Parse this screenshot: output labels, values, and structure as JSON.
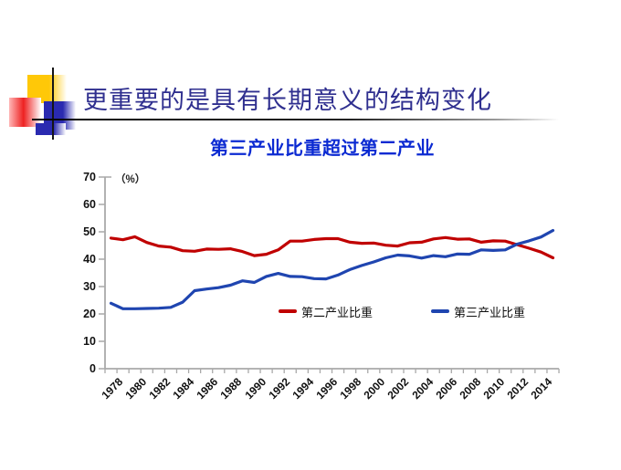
{
  "slide": {
    "title": "更重要的是具有长期意义的结构变化",
    "subtitle": "第三产业比重超过第二产业"
  },
  "decor": {
    "yellow": "#FFC808",
    "pink": "#EE2222",
    "blue": "#2A2AB0",
    "line": "#151515"
  },
  "chart_data": {
    "type": "line",
    "title": "第三产业比重超过第二产业",
    "unit_label": "（%）",
    "ylim": [
      0,
      70
    ],
    "y_ticks": [
      0,
      10,
      20,
      30,
      40,
      50,
      60,
      70
    ],
    "grid": false,
    "axis_color": "#A9A9A9",
    "legend_position": "inside-bottom",
    "x": [
      1978,
      1979,
      1980,
      1981,
      1982,
      1983,
      1984,
      1985,
      1986,
      1987,
      1988,
      1989,
      1990,
      1991,
      1992,
      1993,
      1994,
      1995,
      1996,
      1997,
      1998,
      1999,
      2000,
      2001,
      2002,
      2003,
      2004,
      2005,
      2006,
      2007,
      2008,
      2009,
      2010,
      2011,
      2012,
      2013,
      2014,
      2015
    ],
    "x_tick_labels": [
      "1978",
      "1980",
      "1982",
      "1984",
      "1986",
      "1988",
      "1990",
      "1992",
      "1994",
      "1996",
      "1998",
      "2000",
      "2002",
      "2004",
      "2006",
      "2008",
      "2010",
      "2012",
      "2014"
    ],
    "series": [
      {
        "name": "第二产业比重",
        "color": "#C00000",
        "values": [
          47.7,
          47.1,
          48.2,
          46.1,
          44.8,
          44.4,
          43.1,
          42.9,
          43.7,
          43.6,
          43.8,
          42.8,
          41.3,
          41.8,
          43.4,
          46.6,
          46.6,
          47.2,
          47.5,
          47.5,
          46.2,
          45.8,
          45.9,
          45.1,
          44.8,
          46.0,
          46.2,
          47.4,
          47.9,
          47.3,
          47.4,
          46.2,
          46.7,
          46.6,
          45.3,
          44.0,
          42.6,
          40.5
        ]
      },
      {
        "name": "第三产业比重",
        "color": "#1F45B0",
        "values": [
          23.9,
          21.9,
          21.9,
          22.0,
          22.1,
          22.4,
          24.3,
          28.5,
          29.1,
          29.6,
          30.5,
          32.1,
          31.5,
          33.7,
          34.8,
          33.7,
          33.6,
          32.9,
          32.8,
          34.2,
          36.2,
          37.7,
          39.0,
          40.5,
          41.5,
          41.2,
          40.4,
          41.3,
          40.9,
          41.9,
          41.8,
          43.4,
          43.2,
          43.4,
          45.5,
          46.7,
          48.1,
          50.5
        ]
      }
    ]
  }
}
